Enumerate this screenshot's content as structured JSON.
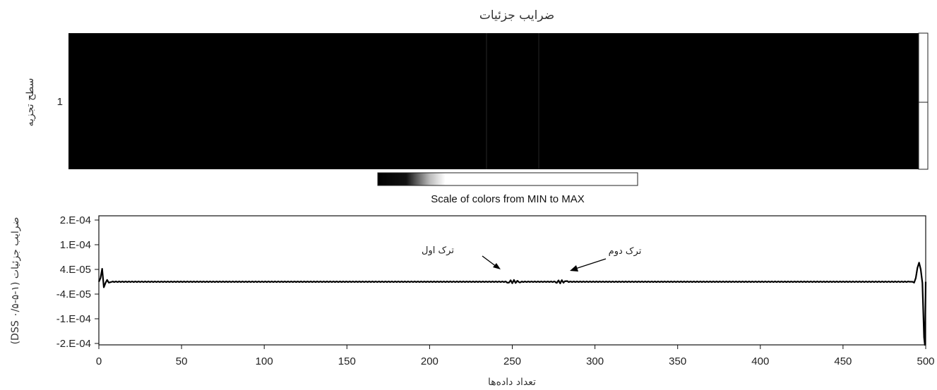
{
  "heatmap": {
    "title": "ضرایب جزئیات",
    "ylabel": "سطح تجزیه",
    "row_labels": [
      "1"
    ],
    "colorbar_label": "Scale of colors from MIN to MAX"
  },
  "chart_data": [
    {
      "type": "heatmap",
      "title": "ضرایب جزئیات",
      "ylabel": "سطح تجزیه",
      "rows": [
        "1"
      ],
      "x_range": [
        0,
        500
      ],
      "colormap": "black-to-white",
      "bright_columns": [
        240,
        270
      ],
      "values_note_scale": "Scale of colors from MIN to MAX"
    },
    {
      "type": "line",
      "xlabel": "تعداد داده‌ها",
      "ylabel": "ضرایب جزئیات (DSS ۰/۵-۵-۱)",
      "xlim": [
        0,
        500
      ],
      "ylim": [
        -0.0002,
        0.0002
      ],
      "xticks": [
        "0",
        "50",
        "100",
        "150",
        "200",
        "250",
        "300",
        "350",
        "400",
        "450",
        "500"
      ],
      "yticks": [
        "2.E-04",
        "1.E-04",
        "4.E-05",
        "-4.E-05",
        "-1.E-04",
        "-2.E-04"
      ],
      "grid": false,
      "series": [
        {
          "points": [
            [
              0,
              0
            ],
            [
              1,
              1.2e-05
            ],
            [
              2,
              4.2e-05
            ],
            [
              3,
              -1.8e-05
            ],
            [
              4,
              -4e-06
            ],
            [
              5,
              6e-06
            ],
            [
              6,
              -3e-06
            ],
            [
              8,
              0
            ],
            [
              20,
              0
            ],
            [
              100,
              0
            ],
            [
              200,
              0
            ],
            [
              246,
              0
            ],
            [
              248,
              -4e-06
            ],
            [
              249,
              6e-06
            ],
            [
              250,
              -6e-06
            ],
            [
              251,
              7e-06
            ],
            [
              252,
              -5e-06
            ],
            [
              253,
              4e-06
            ],
            [
              254,
              -2e-06
            ],
            [
              256,
              0
            ],
            [
              276,
              0
            ],
            [
              277,
              -4e-06
            ],
            [
              278,
              5e-06
            ],
            [
              279,
              -6e-06
            ],
            [
              280,
              6e-06
            ],
            [
              281,
              -4e-06
            ],
            [
              282,
              3e-06
            ],
            [
              284,
              0
            ],
            [
              350,
              0
            ],
            [
              490,
              0
            ],
            [
              492,
              0
            ],
            [
              493,
              -3e-06
            ],
            [
              494,
              1.2e-05
            ],
            [
              495,
              4.5e-05
            ],
            [
              496,
              6.2e-05
            ],
            [
              497,
              4e-05
            ],
            [
              498,
              -4e-06
            ],
            [
              499,
              -0.00018
            ],
            [
              499.7,
              -0.00025
            ],
            [
              500,
              0
            ]
          ]
        }
      ],
      "annotations": [
        {
          "text": "ترک اول",
          "x": 250,
          "y": 0
        },
        {
          "text": "ترک دوم",
          "x": 280,
          "y": 0
        }
      ]
    }
  ]
}
